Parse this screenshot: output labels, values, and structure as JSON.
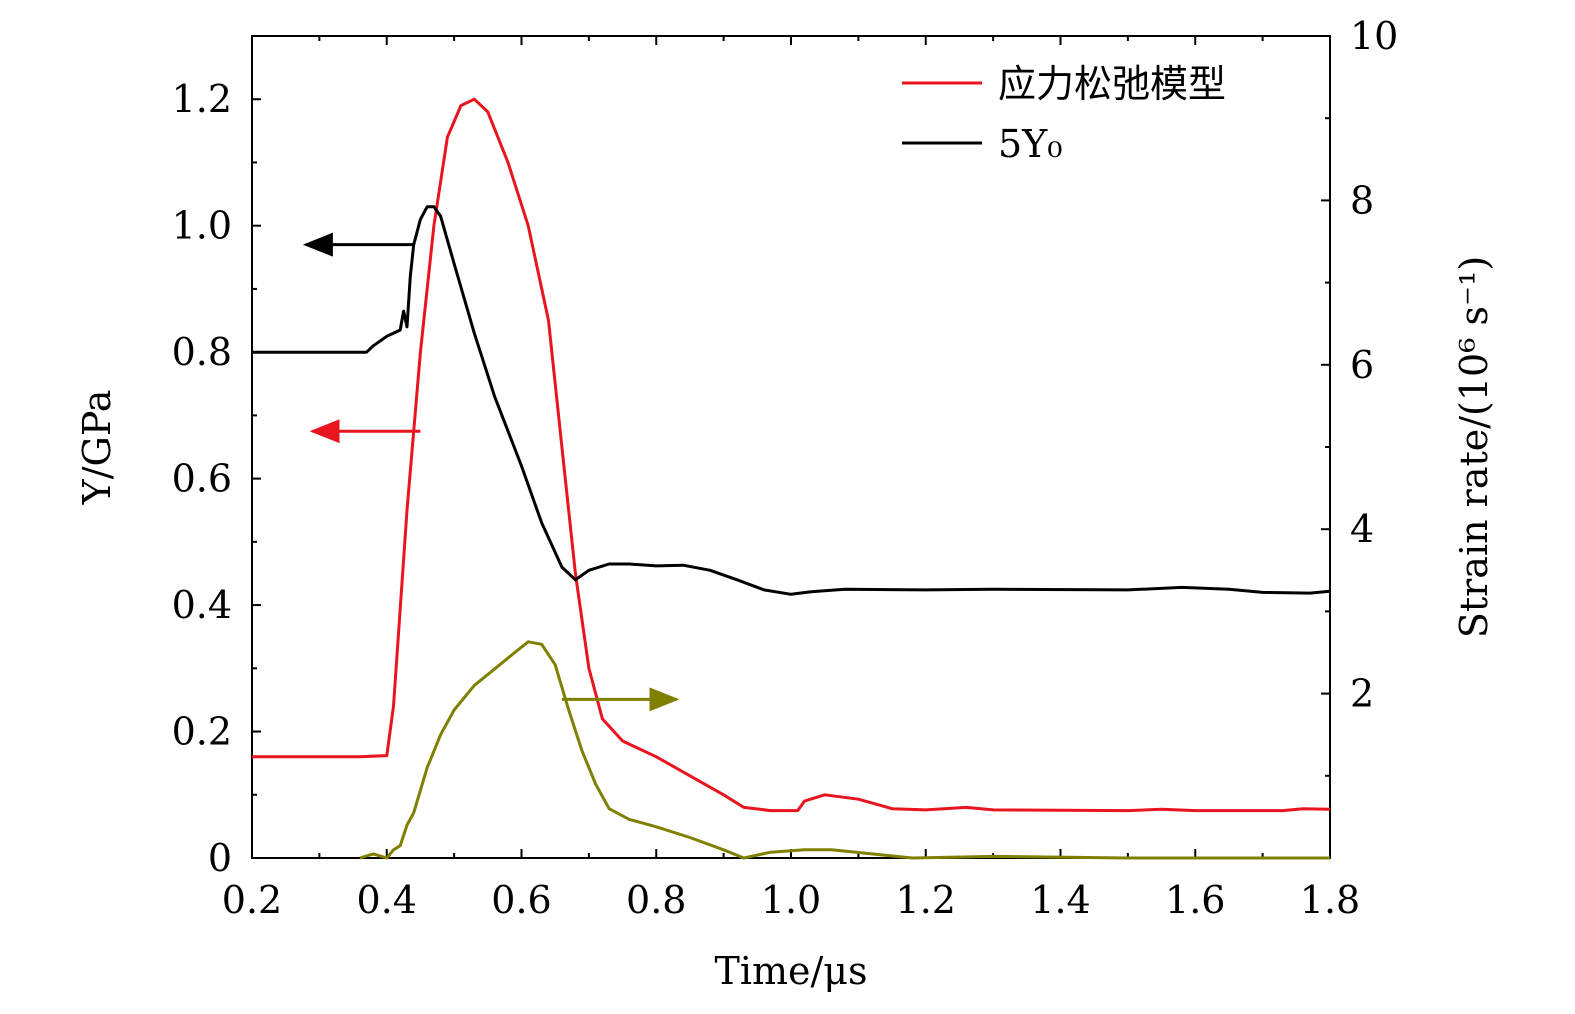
{
  "chart_data": {
    "type": "line",
    "xlabel": "Time/μs",
    "ylabel_left": "Y/GPa",
    "ylabel_right": "Strain rate/(10⁶ s⁻¹)",
    "xlim": [
      0.2,
      1.8
    ],
    "ylim_left": [
      0,
      1.3
    ],
    "ylim_right": [
      0,
      10
    ],
    "x_ticks": [
      "0.2",
      "0.4",
      "0.6",
      "0.8",
      "1.0",
      "1.2",
      "1.4",
      "1.6",
      "1.8"
    ],
    "y_left_ticks": [
      "0",
      "0.2",
      "0.4",
      "0.6",
      "0.8",
      "1.0",
      "1.2"
    ],
    "y_right_ticks": [
      "2",
      "4",
      "6",
      "8",
      "10"
    ],
    "grid": false,
    "legend_position": "top-right",
    "series": [
      {
        "name": "应力松弛模型",
        "axis": "left",
        "color": "#e8141e",
        "points": [
          [
            0.2,
            0.16
          ],
          [
            0.36,
            0.16
          ],
          [
            0.4,
            0.162
          ],
          [
            0.41,
            0.24
          ],
          [
            0.43,
            0.55
          ],
          [
            0.45,
            0.8
          ],
          [
            0.47,
            1.0
          ],
          [
            0.49,
            1.14
          ],
          [
            0.51,
            1.19
          ],
          [
            0.53,
            1.2
          ],
          [
            0.55,
            1.18
          ],
          [
            0.58,
            1.1
          ],
          [
            0.61,
            1.0
          ],
          [
            0.64,
            0.85
          ],
          [
            0.66,
            0.65
          ],
          [
            0.68,
            0.45
          ],
          [
            0.7,
            0.3
          ],
          [
            0.72,
            0.22
          ],
          [
            0.75,
            0.185
          ],
          [
            0.8,
            0.16
          ],
          [
            0.85,
            0.13
          ],
          [
            0.9,
            0.1
          ],
          [
            0.93,
            0.08
          ],
          [
            0.97,
            0.075
          ],
          [
            1.01,
            0.075
          ],
          [
            1.02,
            0.09
          ],
          [
            1.05,
            0.1
          ],
          [
            1.1,
            0.093
          ],
          [
            1.15,
            0.078
          ],
          [
            1.2,
            0.076
          ],
          [
            1.26,
            0.08
          ],
          [
            1.3,
            0.076
          ],
          [
            1.5,
            0.075
          ],
          [
            1.55,
            0.077
          ],
          [
            1.6,
            0.075
          ],
          [
            1.73,
            0.075
          ],
          [
            1.76,
            0.078
          ],
          [
            1.8,
            0.077
          ]
        ]
      },
      {
        "name": "5Y₀",
        "axis": "left",
        "color": "#000000",
        "points": [
          [
            0.2,
            0.8
          ],
          [
            0.37,
            0.8
          ],
          [
            0.38,
            0.81
          ],
          [
            0.4,
            0.825
          ],
          [
            0.42,
            0.835
          ],
          [
            0.425,
            0.865
          ],
          [
            0.43,
            0.84
          ],
          [
            0.435,
            0.92
          ],
          [
            0.44,
            0.97
          ],
          [
            0.45,
            1.01
          ],
          [
            0.46,
            1.03
          ],
          [
            0.47,
            1.03
          ],
          [
            0.48,
            1.015
          ],
          [
            0.5,
            0.94
          ],
          [
            0.53,
            0.83
          ],
          [
            0.56,
            0.73
          ],
          [
            0.6,
            0.62
          ],
          [
            0.63,
            0.53
          ],
          [
            0.66,
            0.46
          ],
          [
            0.68,
            0.44
          ],
          [
            0.7,
            0.455
          ],
          [
            0.73,
            0.465
          ],
          [
            0.76,
            0.465
          ],
          [
            0.8,
            0.462
          ],
          [
            0.84,
            0.463
          ],
          [
            0.88,
            0.455
          ],
          [
            0.92,
            0.44
          ],
          [
            0.96,
            0.424
          ],
          [
            1.0,
            0.417
          ],
          [
            1.03,
            0.421
          ],
          [
            1.08,
            0.425
          ],
          [
            1.2,
            0.424
          ],
          [
            1.3,
            0.425
          ],
          [
            1.5,
            0.424
          ],
          [
            1.58,
            0.428
          ],
          [
            1.65,
            0.425
          ],
          [
            1.7,
            0.42
          ],
          [
            1.77,
            0.419
          ],
          [
            1.8,
            0.422
          ]
        ]
      },
      {
        "name": "",
        "axis": "right",
        "color": "#808000",
        "points": [
          [
            0.36,
            0.0
          ],
          [
            0.38,
            0.05
          ],
          [
            0.4,
            0.0
          ],
          [
            0.41,
            0.1
          ],
          [
            0.42,
            0.15
          ],
          [
            0.43,
            0.4
          ],
          [
            0.44,
            0.55
          ],
          [
            0.46,
            1.1
          ],
          [
            0.48,
            1.5
          ],
          [
            0.5,
            1.8
          ],
          [
            0.53,
            2.1
          ],
          [
            0.56,
            2.3
          ],
          [
            0.59,
            2.5
          ],
          [
            0.61,
            2.63
          ],
          [
            0.63,
            2.6
          ],
          [
            0.65,
            2.35
          ],
          [
            0.67,
            1.8
          ],
          [
            0.69,
            1.3
          ],
          [
            0.71,
            0.9
          ],
          [
            0.73,
            0.6
          ],
          [
            0.76,
            0.47
          ],
          [
            0.8,
            0.38
          ],
          [
            0.85,
            0.25
          ],
          [
            0.9,
            0.1
          ],
          [
            0.93,
            0.0
          ],
          [
            0.97,
            0.07
          ],
          [
            1.02,
            0.1
          ],
          [
            1.06,
            0.1
          ],
          [
            1.12,
            0.05
          ],
          [
            1.18,
            0.0
          ],
          [
            1.3,
            0.02
          ],
          [
            1.5,
            0.0
          ],
          [
            1.8,
            0.0
          ]
        ]
      }
    ],
    "annotations": [
      {
        "type": "arrow",
        "series": "black",
        "from": [
          0.44,
          0.97
        ],
        "to": [
          0.28,
          0.97
        ],
        "axis": "left"
      },
      {
        "type": "arrow",
        "series": "red",
        "from": [
          0.45,
          0.675
        ],
        "to": [
          0.29,
          0.675
        ],
        "axis": "left"
      },
      {
        "type": "arrow",
        "series": "olive",
        "from": [
          0.66,
          1.93
        ],
        "to": [
          0.83,
          1.93
        ],
        "axis": "right"
      }
    ]
  }
}
